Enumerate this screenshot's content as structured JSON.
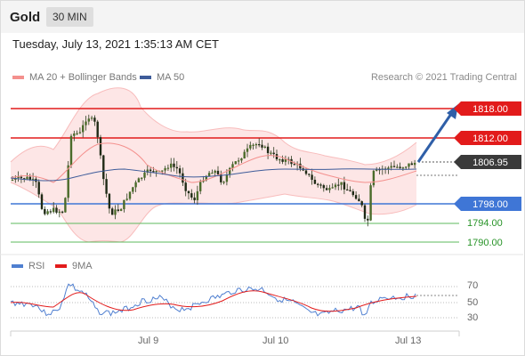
{
  "header": {
    "title": "Gold",
    "timeframe": "30 MIN"
  },
  "timestamp": "Tuesday, July 13, 2021 1:35:13 AM CET",
  "price_legend": [
    {
      "label": "MA 20 + Bollinger Bands",
      "color": "#f4908d"
    },
    {
      "label": "MA 50",
      "color": "#3e5c9a"
    }
  ],
  "copyright": "Research © 2021 Trading Central",
  "price_levels": [
    {
      "value": "1818.00",
      "kind": "resistance",
      "color": "#e21b1b"
    },
    {
      "value": "1812.00",
      "kind": "resistance",
      "color": "#e21b1b"
    },
    {
      "value": "1806.95",
      "kind": "last",
      "color": "#3a3a3a"
    },
    {
      "value": "1798.00",
      "kind": "pivot",
      "color": "#3f76d6"
    },
    {
      "value": "1794.00",
      "kind": "support",
      "color": "#279327"
    },
    {
      "value": "1790.00",
      "kind": "support",
      "color": "#279327"
    }
  ],
  "rsi_legend": [
    {
      "label": "RSI",
      "color": "#4f7fd0"
    },
    {
      "label": "9MA",
      "color": "#e21b1b"
    }
  ],
  "rsi_axis": [
    "70",
    "50",
    "30"
  ],
  "x_axis": [
    "Jul 9",
    "Jul 10",
    "Jul 13"
  ]
}
